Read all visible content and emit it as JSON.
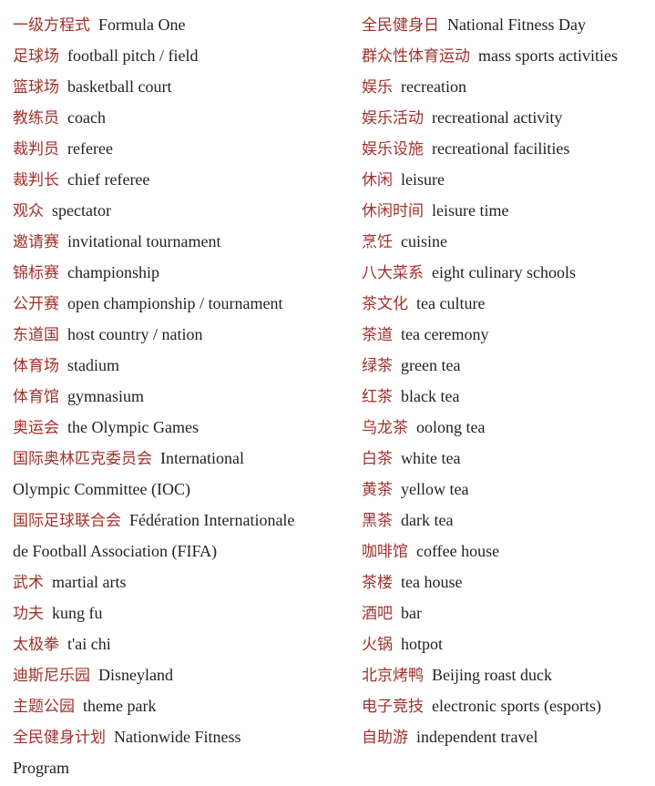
{
  "colors": {
    "term_zh": "#a0312b",
    "term_en": "#231f20"
  },
  "left": [
    {
      "zh": "一级方程式",
      "en": "Formula One"
    },
    {
      "zh": "足球场",
      "en": "football pitch / field"
    },
    {
      "zh": "篮球场",
      "en": "basketball court"
    },
    {
      "zh": "教练员",
      "en": "coach"
    },
    {
      "zh": "裁判员",
      "en": "referee"
    },
    {
      "zh": "裁判长",
      "en": "chief referee"
    },
    {
      "zh": "观众",
      "en": "spectator"
    },
    {
      "zh": "邀请赛",
      "en": "invitational tournament"
    },
    {
      "zh": "锦标赛",
      "en": "championship"
    },
    {
      "zh": "公开赛",
      "en": "open championship / tournament"
    },
    {
      "zh": "东道国",
      "en": "host country / nation"
    },
    {
      "zh": "体育场",
      "en": "stadium"
    },
    {
      "zh": "体育馆",
      "en": "gymnasium"
    },
    {
      "zh": "奥运会",
      "en": "the Olympic Games"
    },
    {
      "zh": "国际奥林匹克委员会",
      "en": "International",
      "en_cont": "Olympic Committee (IOC)"
    },
    {
      "zh": "国际足球联合会",
      "en": "Fédération Internationale",
      "en_cont": "de Football Association (FIFA)"
    },
    {
      "zh": "武术",
      "en": "martial arts"
    },
    {
      "zh": "功夫",
      "en": "kung fu"
    },
    {
      "zh": "太极拳",
      "en": "t'ai chi"
    },
    {
      "zh": "迪斯尼乐园",
      "en": "Disneyland"
    },
    {
      "zh": "主题公园",
      "en": "theme park"
    },
    {
      "zh": "全民健身计划",
      "en": "Nationwide Fitness",
      "en_cont": "Program"
    }
  ],
  "right": [
    {
      "zh": "全民健身日",
      "en": "National Fitness Day"
    },
    {
      "zh": "群众性体育运动",
      "en": "mass sports activities"
    },
    {
      "zh": "娱乐",
      "en": "recreation"
    },
    {
      "zh": "娱乐活动",
      "en": "recreational activity"
    },
    {
      "zh": "娱乐设施",
      "en": "recreational facilities"
    },
    {
      "zh": "休闲",
      "en": "leisure"
    },
    {
      "zh": "休闲时间",
      "en": "leisure time"
    },
    {
      "zh": "烹饪",
      "en": "cuisine"
    },
    {
      "zh": "八大菜系",
      "en": "eight culinary schools"
    },
    {
      "zh": "茶文化",
      "en": "tea culture"
    },
    {
      "zh": "茶道",
      "en": "tea ceremony"
    },
    {
      "zh": "绿茶",
      "en": "green tea"
    },
    {
      "zh": "红茶",
      "en": "black tea"
    },
    {
      "zh": "乌龙茶",
      "en": "oolong tea"
    },
    {
      "zh": "白茶",
      "en": "white tea"
    },
    {
      "zh": "黄茶",
      "en": "yellow tea"
    },
    {
      "zh": "黑茶",
      "en": "dark tea"
    },
    {
      "zh": "咖啡馆",
      "en": "coffee house"
    },
    {
      "zh": "茶楼",
      "en": "tea house"
    },
    {
      "zh": "酒吧",
      "en": "bar"
    },
    {
      "zh": "火锅",
      "en": "hotpot"
    },
    {
      "zh": "北京烤鸭",
      "en": "Beijing roast duck"
    },
    {
      "zh": "电子竞技",
      "en": "electronic sports (esports)"
    },
    {
      "zh": "自助游",
      "en": "independent travel"
    }
  ]
}
